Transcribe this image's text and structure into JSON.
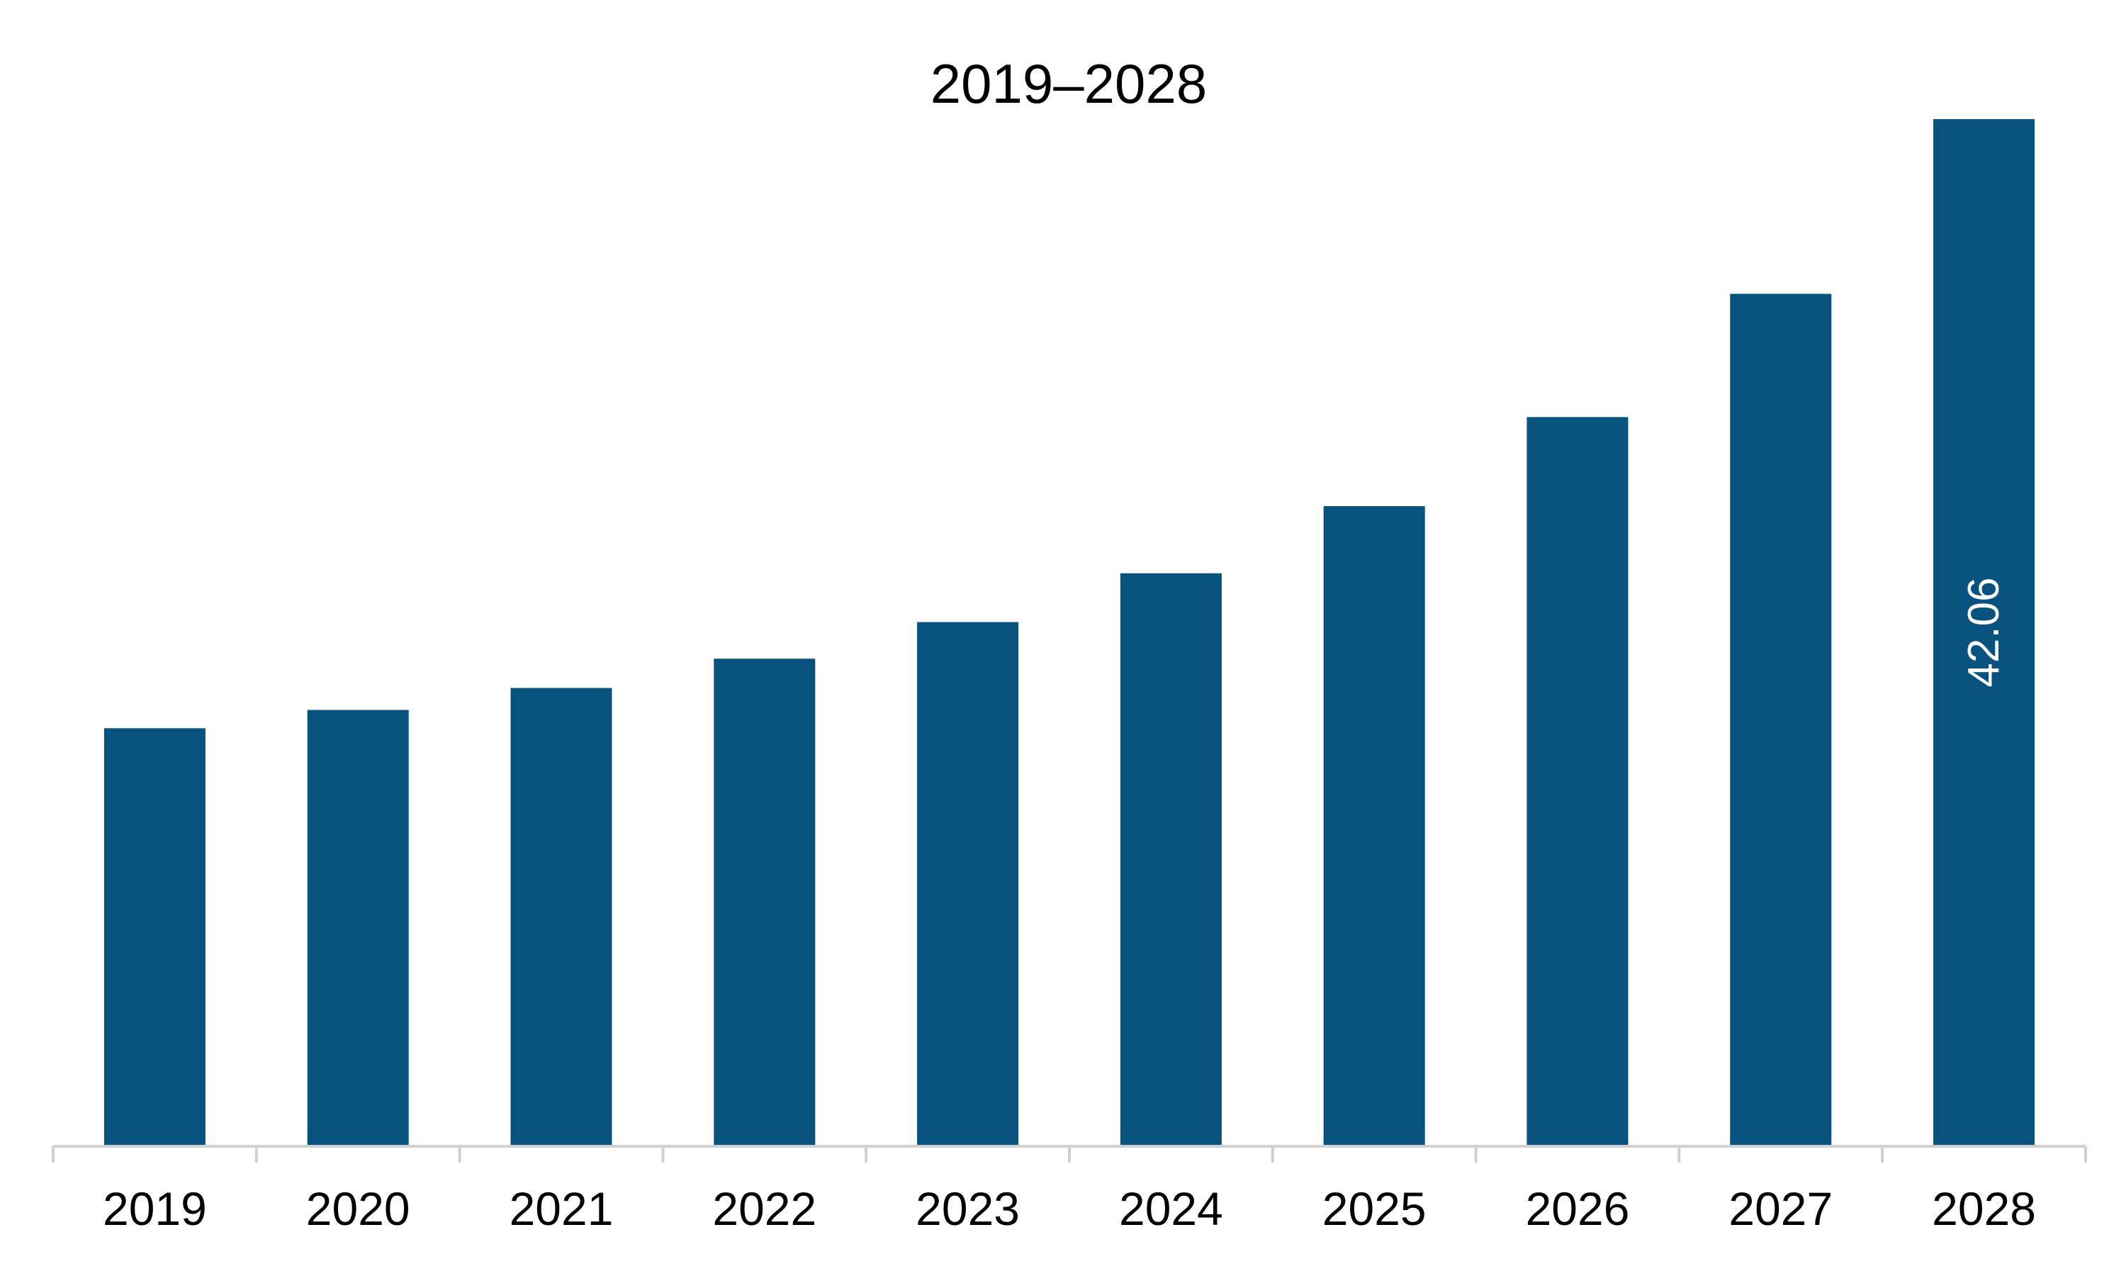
{
  "chart_data": {
    "type": "bar",
    "title": "2019–2028",
    "xlabel": "",
    "ylabel": "",
    "categories": [
      "2019",
      "2020",
      "2021",
      "2022",
      "2023",
      "2024",
      "2025",
      "2026",
      "2027",
      "2028"
    ],
    "values": [
      17.1,
      17.85,
      18.75,
      19.95,
      21.45,
      23.45,
      26.2,
      29.85,
      34.9,
      42.06
    ],
    "data_labels": [
      {
        "category": "2028",
        "text": "42.06"
      }
    ],
    "ylim": [
      0,
      42.06
    ],
    "grid": false,
    "legend": "none",
    "colors": {
      "bar": "#08527f",
      "axis": "#d0d0d0",
      "label": "#ffffff",
      "text": "#000000"
    }
  }
}
